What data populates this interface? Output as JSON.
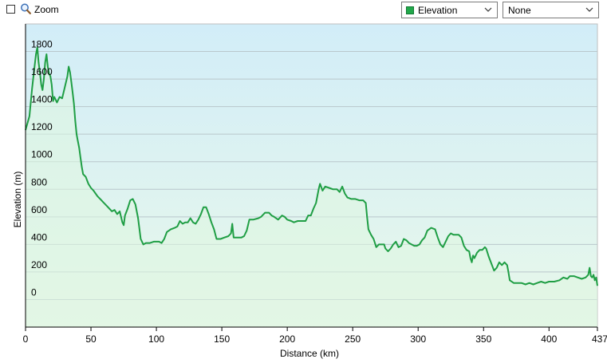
{
  "toolbar": {
    "zoom_label": "Zoom",
    "zoom_checked": false,
    "series_select": {
      "value": "Elevation",
      "color": "#21a84a"
    },
    "secondary_select": {
      "value": "None"
    }
  },
  "chart_data": {
    "type": "area",
    "xlabel": "Distance  (km)",
    "ylabel": "Elevation (m)",
    "xlim": [
      0,
      437
    ],
    "ylim": [
      -200,
      2000
    ],
    "x_ticks": [
      {
        "value": 0,
        "label": "0"
      },
      {
        "value": 50,
        "label": "50"
      },
      {
        "value": 100,
        "label": "100"
      },
      {
        "value": 150,
        "label": "150"
      },
      {
        "value": 200,
        "label": "200"
      },
      {
        "value": 250,
        "label": "250"
      },
      {
        "value": 300,
        "label": "300"
      },
      {
        "value": 350,
        "label": "350"
      },
      {
        "value": 400,
        "label": "400"
      },
      {
        "value": 437,
        "label": "437"
      }
    ],
    "y_ticks": [
      {
        "value": 0,
        "label": "0"
      },
      {
        "value": 200,
        "label": "200"
      },
      {
        "value": 400,
        "label": "400"
      },
      {
        "value": 600,
        "label": "600"
      },
      {
        "value": 800,
        "label": "800"
      },
      {
        "value": 1000,
        "label": "1000"
      },
      {
        "value": 1200,
        "label": "1200"
      },
      {
        "value": 1400,
        "label": "1400"
      },
      {
        "value": 1600,
        "label": "1600"
      },
      {
        "value": 1800,
        "label": "1800"
      }
    ],
    "grid": true,
    "line_color": "#1f9e44",
    "series": [
      {
        "values": [
          [
            0,
            1230
          ],
          [
            3,
            1330
          ],
          [
            5,
            1530
          ],
          [
            7,
            1700
          ],
          [
            8,
            1780
          ],
          [
            9,
            1830
          ],
          [
            10,
            1720
          ],
          [
            11,
            1650
          ],
          [
            12,
            1560
          ],
          [
            13,
            1520
          ],
          [
            14,
            1600
          ],
          [
            15,
            1720
          ],
          [
            16,
            1780
          ],
          [
            17,
            1690
          ],
          [
            18,
            1640
          ],
          [
            19,
            1620
          ],
          [
            20,
            1560
          ],
          [
            21,
            1440
          ],
          [
            22,
            1470
          ],
          [
            24,
            1430
          ],
          [
            26,
            1470
          ],
          [
            28,
            1460
          ],
          [
            30,
            1540
          ],
          [
            32,
            1620
          ],
          [
            33,
            1690
          ],
          [
            34,
            1650
          ],
          [
            35,
            1580
          ],
          [
            36,
            1500
          ],
          [
            37,
            1420
          ],
          [
            38,
            1300
          ],
          [
            39,
            1200
          ],
          [
            40,
            1150
          ],
          [
            41,
            1100
          ],
          [
            42,
            1030
          ],
          [
            43,
            960
          ],
          [
            44,
            910
          ],
          [
            46,
            890
          ],
          [
            48,
            840
          ],
          [
            50,
            810
          ],
          [
            52,
            790
          ],
          [
            55,
            750
          ],
          [
            58,
            720
          ],
          [
            60,
            700
          ],
          [
            63,
            670
          ],
          [
            66,
            640
          ],
          [
            68,
            650
          ],
          [
            70,
            620
          ],
          [
            72,
            640
          ],
          [
            74,
            560
          ],
          [
            75,
            540
          ],
          [
            76,
            610
          ],
          [
            78,
            660
          ],
          [
            80,
            720
          ],
          [
            82,
            730
          ],
          [
            84,
            690
          ],
          [
            86,
            590
          ],
          [
            88,
            440
          ],
          [
            90,
            400
          ],
          [
            92,
            410
          ],
          [
            95,
            410
          ],
          [
            98,
            420
          ],
          [
            102,
            420
          ],
          [
            104,
            410
          ],
          [
            106,
            440
          ],
          [
            108,
            490
          ],
          [
            111,
            510
          ],
          [
            114,
            520
          ],
          [
            116,
            530
          ],
          [
            118,
            570
          ],
          [
            120,
            550
          ],
          [
            122,
            560
          ],
          [
            124,
            560
          ],
          [
            126,
            590
          ],
          [
            128,
            560
          ],
          [
            130,
            550
          ],
          [
            132,
            580
          ],
          [
            134,
            620
          ],
          [
            136,
            670
          ],
          [
            138,
            670
          ],
          [
            140,
            620
          ],
          [
            142,
            560
          ],
          [
            144,
            510
          ],
          [
            146,
            440
          ],
          [
            149,
            440
          ],
          [
            152,
            450
          ],
          [
            155,
            460
          ],
          [
            157,
            480
          ],
          [
            158,
            550
          ],
          [
            159,
            450
          ],
          [
            162,
            450
          ],
          [
            165,
            450
          ],
          [
            167,
            460
          ],
          [
            169,
            500
          ],
          [
            171,
            580
          ],
          [
            174,
            580
          ],
          [
            178,
            590
          ],
          [
            180,
            600
          ],
          [
            183,
            630
          ],
          [
            186,
            630
          ],
          [
            188,
            610
          ],
          [
            190,
            600
          ],
          [
            193,
            580
          ],
          [
            196,
            610
          ],
          [
            198,
            600
          ],
          [
            200,
            580
          ],
          [
            203,
            570
          ],
          [
            205,
            560
          ],
          [
            208,
            570
          ],
          [
            211,
            570
          ],
          [
            214,
            570
          ],
          [
            216,
            610
          ],
          [
            218,
            610
          ],
          [
            220,
            660
          ],
          [
            222,
            700
          ],
          [
            224,
            800
          ],
          [
            225,
            840
          ],
          [
            227,
            790
          ],
          [
            229,
            820
          ],
          [
            232,
            810
          ],
          [
            235,
            800
          ],
          [
            238,
            800
          ],
          [
            240,
            780
          ],
          [
            242,
            820
          ],
          [
            244,
            770
          ],
          [
            246,
            740
          ],
          [
            249,
            730
          ],
          [
            252,
            730
          ],
          [
            255,
            720
          ],
          [
            258,
            720
          ],
          [
            260,
            700
          ],
          [
            261,
            600
          ],
          [
            262,
            510
          ],
          [
            264,
            470
          ],
          [
            266,
            440
          ],
          [
            268,
            380
          ],
          [
            270,
            400
          ],
          [
            272,
            400
          ],
          [
            274,
            400
          ],
          [
            275,
            370
          ],
          [
            277,
            350
          ],
          [
            279,
            370
          ],
          [
            281,
            400
          ],
          [
            283,
            420
          ],
          [
            285,
            380
          ],
          [
            287,
            390
          ],
          [
            289,
            440
          ],
          [
            291,
            430
          ],
          [
            293,
            410
          ],
          [
            295,
            400
          ],
          [
            297,
            390
          ],
          [
            299,
            390
          ],
          [
            301,
            400
          ],
          [
            303,
            430
          ],
          [
            305,
            450
          ],
          [
            307,
            500
          ],
          [
            310,
            520
          ],
          [
            313,
            510
          ],
          [
            315,
            450
          ],
          [
            317,
            400
          ],
          [
            319,
            380
          ],
          [
            321,
            420
          ],
          [
            323,
            460
          ],
          [
            325,
            480
          ],
          [
            327,
            470
          ],
          [
            329,
            470
          ],
          [
            331,
            470
          ],
          [
            333,
            450
          ],
          [
            335,
            390
          ],
          [
            337,
            360
          ],
          [
            339,
            350
          ],
          [
            340,
            300
          ],
          [
            341,
            270
          ],
          [
            342,
            320
          ],
          [
            343,
            300
          ],
          [
            345,
            340
          ],
          [
            347,
            360
          ],
          [
            349,
            360
          ],
          [
            351,
            380
          ],
          [
            352,
            370
          ],
          [
            354,
            310
          ],
          [
            356,
            260
          ],
          [
            358,
            210
          ],
          [
            360,
            230
          ],
          [
            362,
            270
          ],
          [
            364,
            250
          ],
          [
            366,
            270
          ],
          [
            368,
            250
          ],
          [
            369,
            200
          ],
          [
            370,
            140
          ],
          [
            373,
            120
          ],
          [
            376,
            120
          ],
          [
            379,
            120
          ],
          [
            382,
            110
          ],
          [
            385,
            120
          ],
          [
            388,
            110
          ],
          [
            391,
            120
          ],
          [
            394,
            130
          ],
          [
            397,
            120
          ],
          [
            400,
            130
          ],
          [
            404,
            130
          ],
          [
            408,
            140
          ],
          [
            411,
            160
          ],
          [
            414,
            150
          ],
          [
            416,
            170
          ],
          [
            419,
            170
          ],
          [
            422,
            160
          ],
          [
            425,
            150
          ],
          [
            428,
            160
          ],
          [
            430,
            180
          ],
          [
            431,
            230
          ],
          [
            432,
            170
          ],
          [
            433,
            160
          ],
          [
            434,
            180
          ],
          [
            435,
            140
          ],
          [
            436,
            160
          ],
          [
            437,
            100
          ]
        ]
      }
    ]
  }
}
